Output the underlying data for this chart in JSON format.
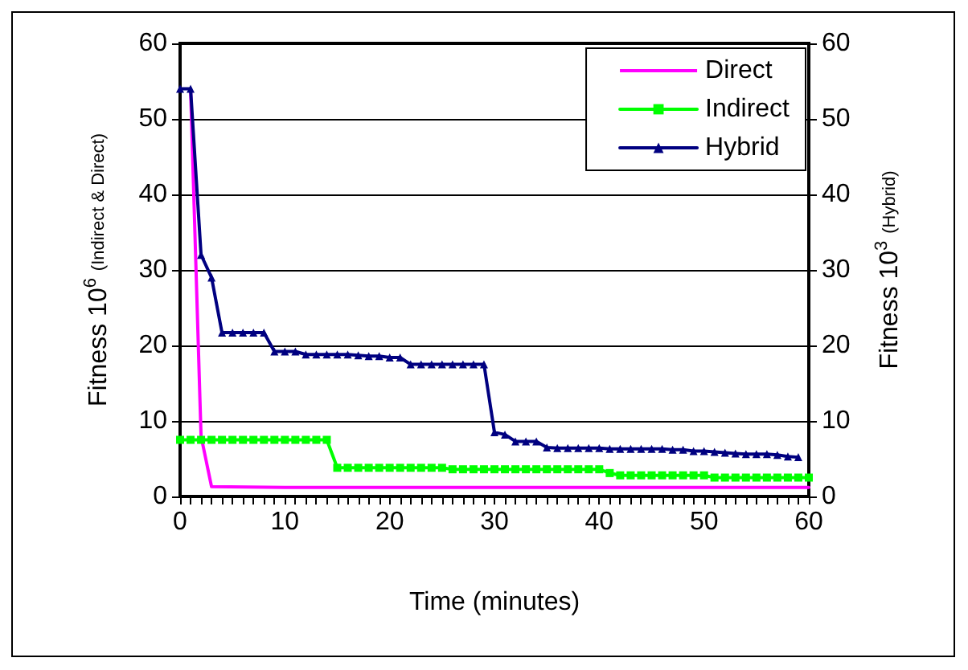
{
  "chart_data": {
    "type": "line",
    "xlabel": "Time (minutes)",
    "ylabel": "Fitness 10$^{6}$ (Indirect & Direct)",
    "y2label": "Fitness 10$^{3}$ (Hybrid)",
    "xlim": [
      0,
      60
    ],
    "xticks": [
      0,
      {
        "value": 1,
        "label": null
      },
      {
        "value": 2,
        "label": null
      },
      {
        "value": 3,
        "label": null
      },
      {
        "value": 4,
        "label": null
      },
      {
        "value": 5,
        "label": null
      },
      {
        "value": 6,
        "label": null
      },
      {
        "value": 7,
        "label": null
      },
      {
        "value": 8,
        "label": null
      },
      {
        "value": 9,
        "label": null
      },
      10,
      {
        "value": 11,
        "label": null
      },
      {
        "value": 12,
        "label": null
      },
      {
        "value": 13,
        "label": null
      },
      {
        "value": 14,
        "label": null
      },
      {
        "value": 15,
        "label": null
      },
      {
        "value": 16,
        "label": null
      },
      {
        "value": 17,
        "label": null
      },
      {
        "value": 18,
        "label": null
      },
      {
        "value": 19,
        "label": null
      },
      20,
      {
        "value": 21,
        "label": null
      },
      {
        "value": 22,
        "label": null
      },
      {
        "value": 23,
        "label": null
      },
      {
        "value": 24,
        "label": null
      },
      {
        "value": 25,
        "label": null
      },
      {
        "value": 26,
        "label": null
      },
      {
        "value": 27,
        "label": null
      },
      {
        "value": 28,
        "label": null
      },
      {
        "value": 29,
        "label": null
      },
      30,
      {
        "value": 31,
        "label": null
      },
      {
        "value": 32,
        "label": null
      },
      {
        "value": 33,
        "label": null
      },
      {
        "value": 34,
        "label": null
      },
      {
        "value": 35,
        "label": null
      },
      {
        "value": 36,
        "label": null
      },
      {
        "value": 37,
        "label": null
      },
      {
        "value": 38,
        "label": null
      },
      {
        "value": 39,
        "label": null
      },
      40,
      {
        "value": 41,
        "label": null
      },
      {
        "value": 42,
        "label": null
      },
      {
        "value": 43,
        "label": null
      },
      {
        "value": 44,
        "label": null
      },
      {
        "value": 45,
        "label": null
      },
      {
        "value": 46,
        "label": null
      },
      {
        "value": 47,
        "label": null
      },
      {
        "value": 48,
        "label": null
      },
      {
        "value": 49,
        "label": null
      },
      50,
      {
        "value": 51,
        "label": null
      },
      {
        "value": 52,
        "label": null
      },
      {
        "value": 53,
        "label": null
      },
      {
        "value": 54,
        "label": null
      },
      {
        "value": 55,
        "label": null
      },
      {
        "value": 56,
        "label": null
      },
      {
        "value": 57,
        "label": null
      },
      {
        "value": 58,
        "label": null
      },
      {
        "value": 59,
        "label": null
      },
      60
    ],
    "ylim": [
      0,
      60
    ],
    "yticks": [
      0,
      10,
      20,
      30,
      40,
      50,
      60
    ],
    "y2lim": [
      0,
      60
    ],
    "y2ticks": [
      0,
      10,
      20,
      30,
      40,
      50,
      60
    ],
    "grid": "y",
    "legend": "top right",
    "series": [
      {
        "name": "Direct",
        "color": "#ff00ff",
        "marker": "none",
        "x": [
          1,
          2,
          3,
          10,
          60
        ],
        "values": [
          54,
          8,
          1.3,
          1.2,
          1.2
        ]
      },
      {
        "name": "Indirect",
        "color": "#00ff00",
        "marker": "square",
        "x": [
          0,
          1,
          2,
          3,
          4,
          5,
          6,
          7,
          8,
          9,
          10,
          11,
          12,
          13,
          14,
          15,
          16,
          17,
          18,
          19,
          20,
          21,
          22,
          23,
          24,
          25,
          26,
          27,
          28,
          29,
          30,
          31,
          32,
          33,
          34,
          35,
          36,
          37,
          38,
          39,
          40,
          41,
          42,
          43,
          44,
          45,
          46,
          47,
          48,
          49,
          50,
          51,
          52,
          53,
          54,
          55,
          56,
          57,
          58,
          59,
          60
        ],
        "values": [
          7.5,
          7.5,
          7.5,
          7.5,
          7.5,
          7.5,
          7.5,
          7.5,
          7.5,
          7.5,
          7.5,
          7.5,
          7.5,
          7.5,
          7.5,
          3.8,
          3.8,
          3.8,
          3.8,
          3.8,
          3.8,
          3.8,
          3.8,
          3.8,
          3.8,
          3.8,
          3.6,
          3.6,
          3.6,
          3.6,
          3.6,
          3.6,
          3.6,
          3.6,
          3.6,
          3.6,
          3.6,
          3.6,
          3.6,
          3.6,
          3.6,
          3.1,
          2.8,
          2.8,
          2.8,
          2.8,
          2.8,
          2.8,
          2.8,
          2.8,
          2.8,
          2.5,
          2.5,
          2.5,
          2.5,
          2.5,
          2.5,
          2.5,
          2.5,
          2.5,
          2.5
        ]
      },
      {
        "name": "Hybrid",
        "color": "#000080",
        "marker": "triangle",
        "axis": "y2",
        "x": [
          0,
          1,
          2,
          3,
          4,
          5,
          6,
          7,
          8,
          9,
          10,
          11,
          12,
          13,
          14,
          15,
          16,
          17,
          18,
          19,
          20,
          21,
          22,
          23,
          24,
          25,
          26,
          27,
          28,
          29,
          30,
          31,
          32,
          33,
          34,
          35,
          36,
          37,
          38,
          39,
          40,
          41,
          42,
          43,
          44,
          45,
          46,
          47,
          48,
          49,
          50,
          51,
          52,
          53,
          54,
          55,
          56,
          57,
          58,
          59
        ],
        "values": [
          54,
          54,
          32,
          29,
          21.7,
          21.7,
          21.7,
          21.7,
          21.7,
          19.2,
          19.2,
          19.2,
          18.8,
          18.8,
          18.8,
          18.8,
          18.8,
          18.7,
          18.6,
          18.6,
          18.4,
          18.4,
          17.5,
          17.5,
          17.5,
          17.5,
          17.5,
          17.5,
          17.5,
          17.5,
          8.5,
          8.2,
          7.3,
          7.3,
          7.3,
          6.5,
          6.4,
          6.4,
          6.4,
          6.4,
          6.4,
          6.3,
          6.3,
          6.3,
          6.3,
          6.3,
          6.3,
          6.2,
          6.2,
          6.0,
          6.0,
          5.9,
          5.8,
          5.7,
          5.6,
          5.6,
          5.6,
          5.5,
          5.3,
          5.2
        ]
      }
    ]
  }
}
